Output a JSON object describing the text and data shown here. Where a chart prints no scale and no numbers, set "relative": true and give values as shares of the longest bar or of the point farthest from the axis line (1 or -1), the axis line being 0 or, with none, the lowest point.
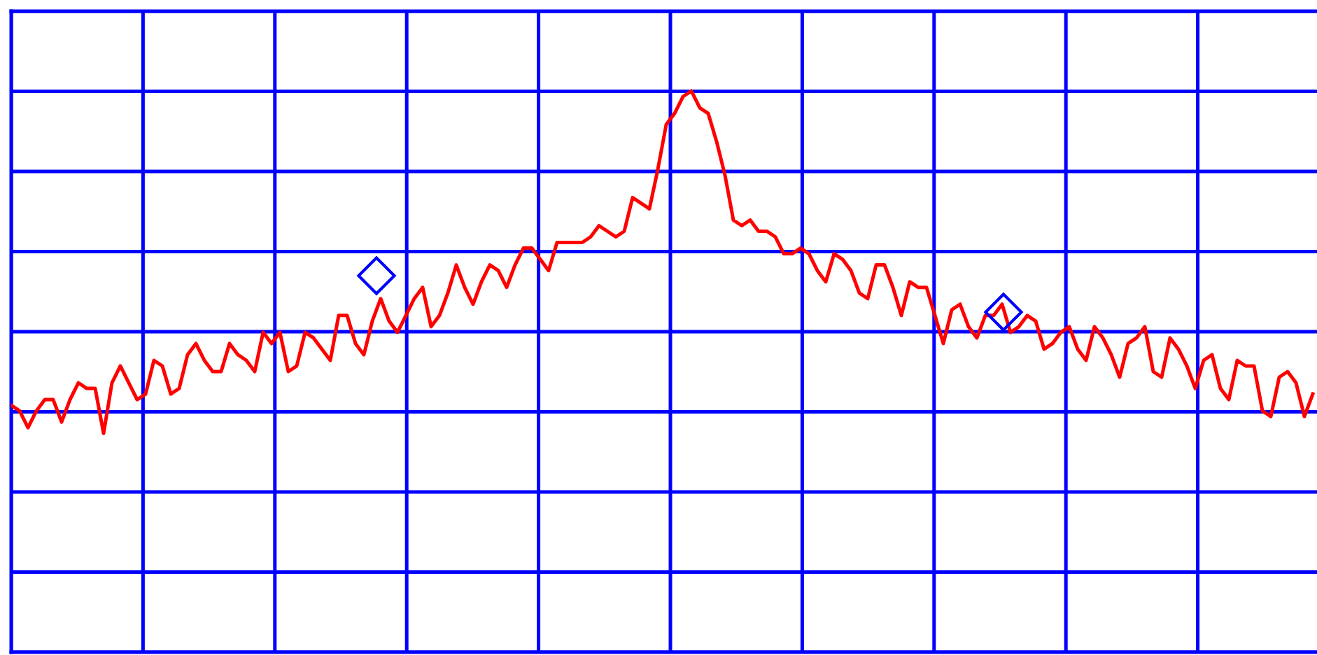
{
  "chart_data": {
    "type": "line",
    "relative": true,
    "grid": true,
    "legend": false,
    "tick_labels": false,
    "categories": [
      null,
      null,
      null,
      null,
      null,
      null,
      null,
      null,
      null,
      null,
      null,
      null,
      null,
      null,
      null,
      null,
      null,
      null,
      null,
      null,
      null,
      null,
      null,
      null,
      null,
      null,
      null,
      null,
      null,
      null,
      null,
      null,
      null,
      null,
      null,
      null,
      null,
      null,
      null,
      null,
      null,
      null,
      null,
      null,
      null,
      null,
      null,
      null,
      null,
      null,
      null,
      null,
      null,
      null,
      null,
      null,
      null,
      null,
      null,
      null,
      null,
      null,
      null,
      null,
      null,
      null,
      null,
      null,
      null,
      null,
      null,
      null,
      null,
      null,
      null,
      null,
      null,
      null,
      null,
      null,
      null,
      null,
      null,
      null,
      null,
      null,
      null,
      null,
      null,
      null,
      null,
      null,
      null,
      null,
      null,
      null,
      null,
      null,
      null,
      null,
      null,
      null,
      null,
      null,
      null,
      null,
      null,
      null,
      null,
      null,
      null,
      null,
      null,
      null,
      null,
      null,
      null,
      null,
      null,
      null,
      null,
      null,
      null,
      null,
      null,
      null,
      null,
      null,
      null,
      null,
      null,
      null,
      null,
      null,
      null,
      null,
      null,
      null,
      null,
      null,
      null,
      null,
      null,
      null,
      null,
      null,
      null,
      null,
      null,
      null,
      null,
      null,
      null,
      null,
      null,
      null
    ],
    "series": [
      {
        "type": "line",
        "color": "#ff0000",
        "marker": "none",
        "line_style": "solid",
        "values": [
          0.44,
          0.43,
          0.4,
          0.43,
          0.45,
          0.45,
          0.41,
          0.45,
          0.48,
          0.47,
          0.47,
          0.39,
          0.48,
          0.51,
          0.48,
          0.45,
          0.46,
          0.52,
          0.51,
          0.46,
          0.47,
          0.53,
          0.55,
          0.52,
          0.5,
          0.5,
          0.55,
          0.53,
          0.52,
          0.5,
          0.57,
          0.55,
          0.57,
          0.5,
          0.51,
          0.57,
          0.56,
          0.54,
          0.52,
          0.6,
          0.6,
          0.55,
          0.53,
          0.59,
          0.63,
          0.59,
          0.57,
          0.6,
          0.63,
          0.65,
          0.58,
          0.6,
          0.64,
          0.69,
          0.65,
          0.62,
          0.66,
          0.69,
          0.68,
          0.65,
          0.69,
          0.72,
          0.72,
          0.7,
          0.68,
          0.73,
          0.73,
          0.73,
          0.73,
          0.74,
          0.76,
          0.75,
          0.74,
          0.75,
          0.81,
          0.8,
          0.79,
          0.86,
          0.94,
          0.96,
          0.99,
          1.0,
          0.97,
          0.96,
          0.91,
          0.85,
          0.77,
          0.76,
          0.77,
          0.75,
          0.75,
          0.74,
          0.71,
          0.71,
          0.72,
          0.71,
          0.68,
          0.66,
          0.71,
          0.7,
          0.68,
          0.64,
          0.63,
          0.69,
          0.69,
          0.65,
          0.6,
          0.66,
          0.65,
          0.65,
          0.6,
          0.55,
          0.61,
          0.62,
          0.58,
          0.56,
          0.6,
          0.6,
          0.62,
          0.57,
          0.58,
          0.6,
          0.59,
          0.54,
          0.55,
          0.57,
          0.58,
          0.54,
          0.52,
          0.58,
          0.56,
          0.53,
          0.49,
          0.55,
          0.56,
          0.58,
          0.5,
          0.49,
          0.56,
          0.54,
          0.51,
          0.47,
          0.52,
          0.53,
          0.47,
          0.45,
          0.52,
          0.51,
          0.51,
          0.43,
          0.42,
          0.49,
          0.5,
          0.48,
          0.42,
          0.46
        ]
      }
    ]
  }
}
